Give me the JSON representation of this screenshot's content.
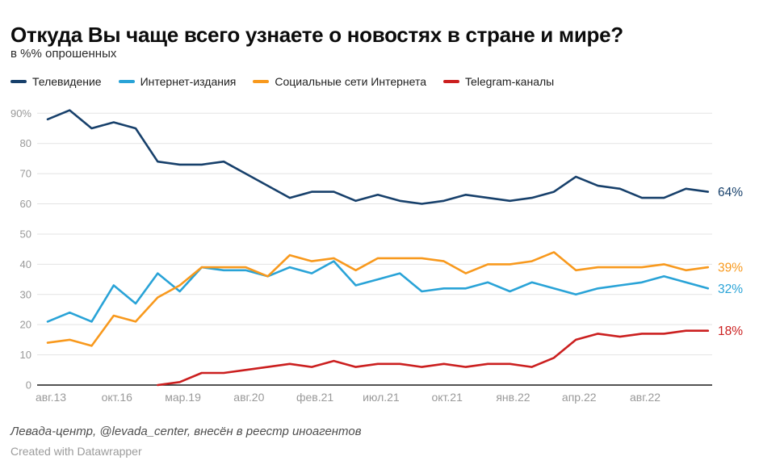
{
  "header": {
    "title": "Откуда Вы чаще всего узнаете о новостях в стране и мире?",
    "subtitle": "в %% опрошенных"
  },
  "chart_data": {
    "type": "line",
    "title": "Откуда Вы чаще всего узнаете о новостях в стране и мире?",
    "subtitle": "в %% опрошенных",
    "ylim": [
      0,
      91
    ],
    "grid": "horizontal",
    "legend_position": "top",
    "y_ticks": [
      {
        "value": 0,
        "label": "0"
      },
      {
        "value": 10,
        "label": "10"
      },
      {
        "value": 20,
        "label": "20"
      },
      {
        "value": 30,
        "label": "30"
      },
      {
        "value": 40,
        "label": "40"
      },
      {
        "value": 50,
        "label": "50"
      },
      {
        "value": 60,
        "label": "60"
      },
      {
        "value": 70,
        "label": "70"
      },
      {
        "value": 80,
        "label": "80"
      },
      {
        "value": 90,
        "label": "90%"
      }
    ],
    "x_tick_labels": [
      "авг.13",
      "окт.16",
      "мар.19",
      "авг.20",
      "фев.21",
      "июл.21",
      "окт.21",
      "янв.22",
      "апр.22",
      "авг.22"
    ],
    "x_tick_point_indices": [
      0,
      3,
      6,
      9,
      12,
      15,
      18,
      21,
      24,
      27
    ],
    "point_count": 31,
    "series": [
      {
        "name": "Телевидение",
        "color": "#17406b",
        "end_label": "64%",
        "values": [
          88,
          91,
          85,
          87,
          85,
          74,
          73,
          73,
          74,
          70,
          66,
          62,
          64,
          64,
          61,
          63,
          61,
          60,
          61,
          63,
          62,
          61,
          62,
          64,
          69,
          66,
          65,
          62,
          62,
          65,
          64
        ]
      },
      {
        "name": "Интернет-издания",
        "color": "#29a3d7",
        "end_label": "32%",
        "values": [
          21,
          24,
          21,
          33,
          27,
          37,
          31,
          39,
          38,
          38,
          36,
          39,
          37,
          41,
          33,
          35,
          37,
          31,
          32,
          32,
          34,
          31,
          34,
          32,
          30,
          32,
          33,
          34,
          36,
          34,
          32
        ]
      },
      {
        "name": "Социальные сети Интернета",
        "color": "#f8991d",
        "end_label": "39%",
        "values": [
          14,
          15,
          13,
          23,
          21,
          29,
          33,
          39,
          39,
          39,
          36,
          43,
          41,
          42,
          38,
          42,
          42,
          42,
          41,
          37,
          40,
          40,
          41,
          44,
          38,
          39,
          39,
          39,
          40,
          38,
          39
        ]
      },
      {
        "name": "Telegram-каналы",
        "color": "#cb1f1f",
        "end_label": "18%",
        "values": [
          null,
          null,
          null,
          null,
          null,
          0,
          1,
          4,
          4,
          5,
          6,
          7,
          6,
          8,
          6,
          7,
          7,
          6,
          7,
          6,
          7,
          7,
          6,
          9,
          15,
          17,
          16,
          17,
          17,
          18,
          18
        ]
      }
    ],
    "axis_colors": {
      "grid": "#e3e3e3",
      "baseline": "#1a1a1a",
      "tick_text": "#999999"
    }
  },
  "footer": {
    "source": "Левада-центр, @levada_center, внесён в реестр иноагентов",
    "credit": "Created with Datawrapper"
  }
}
